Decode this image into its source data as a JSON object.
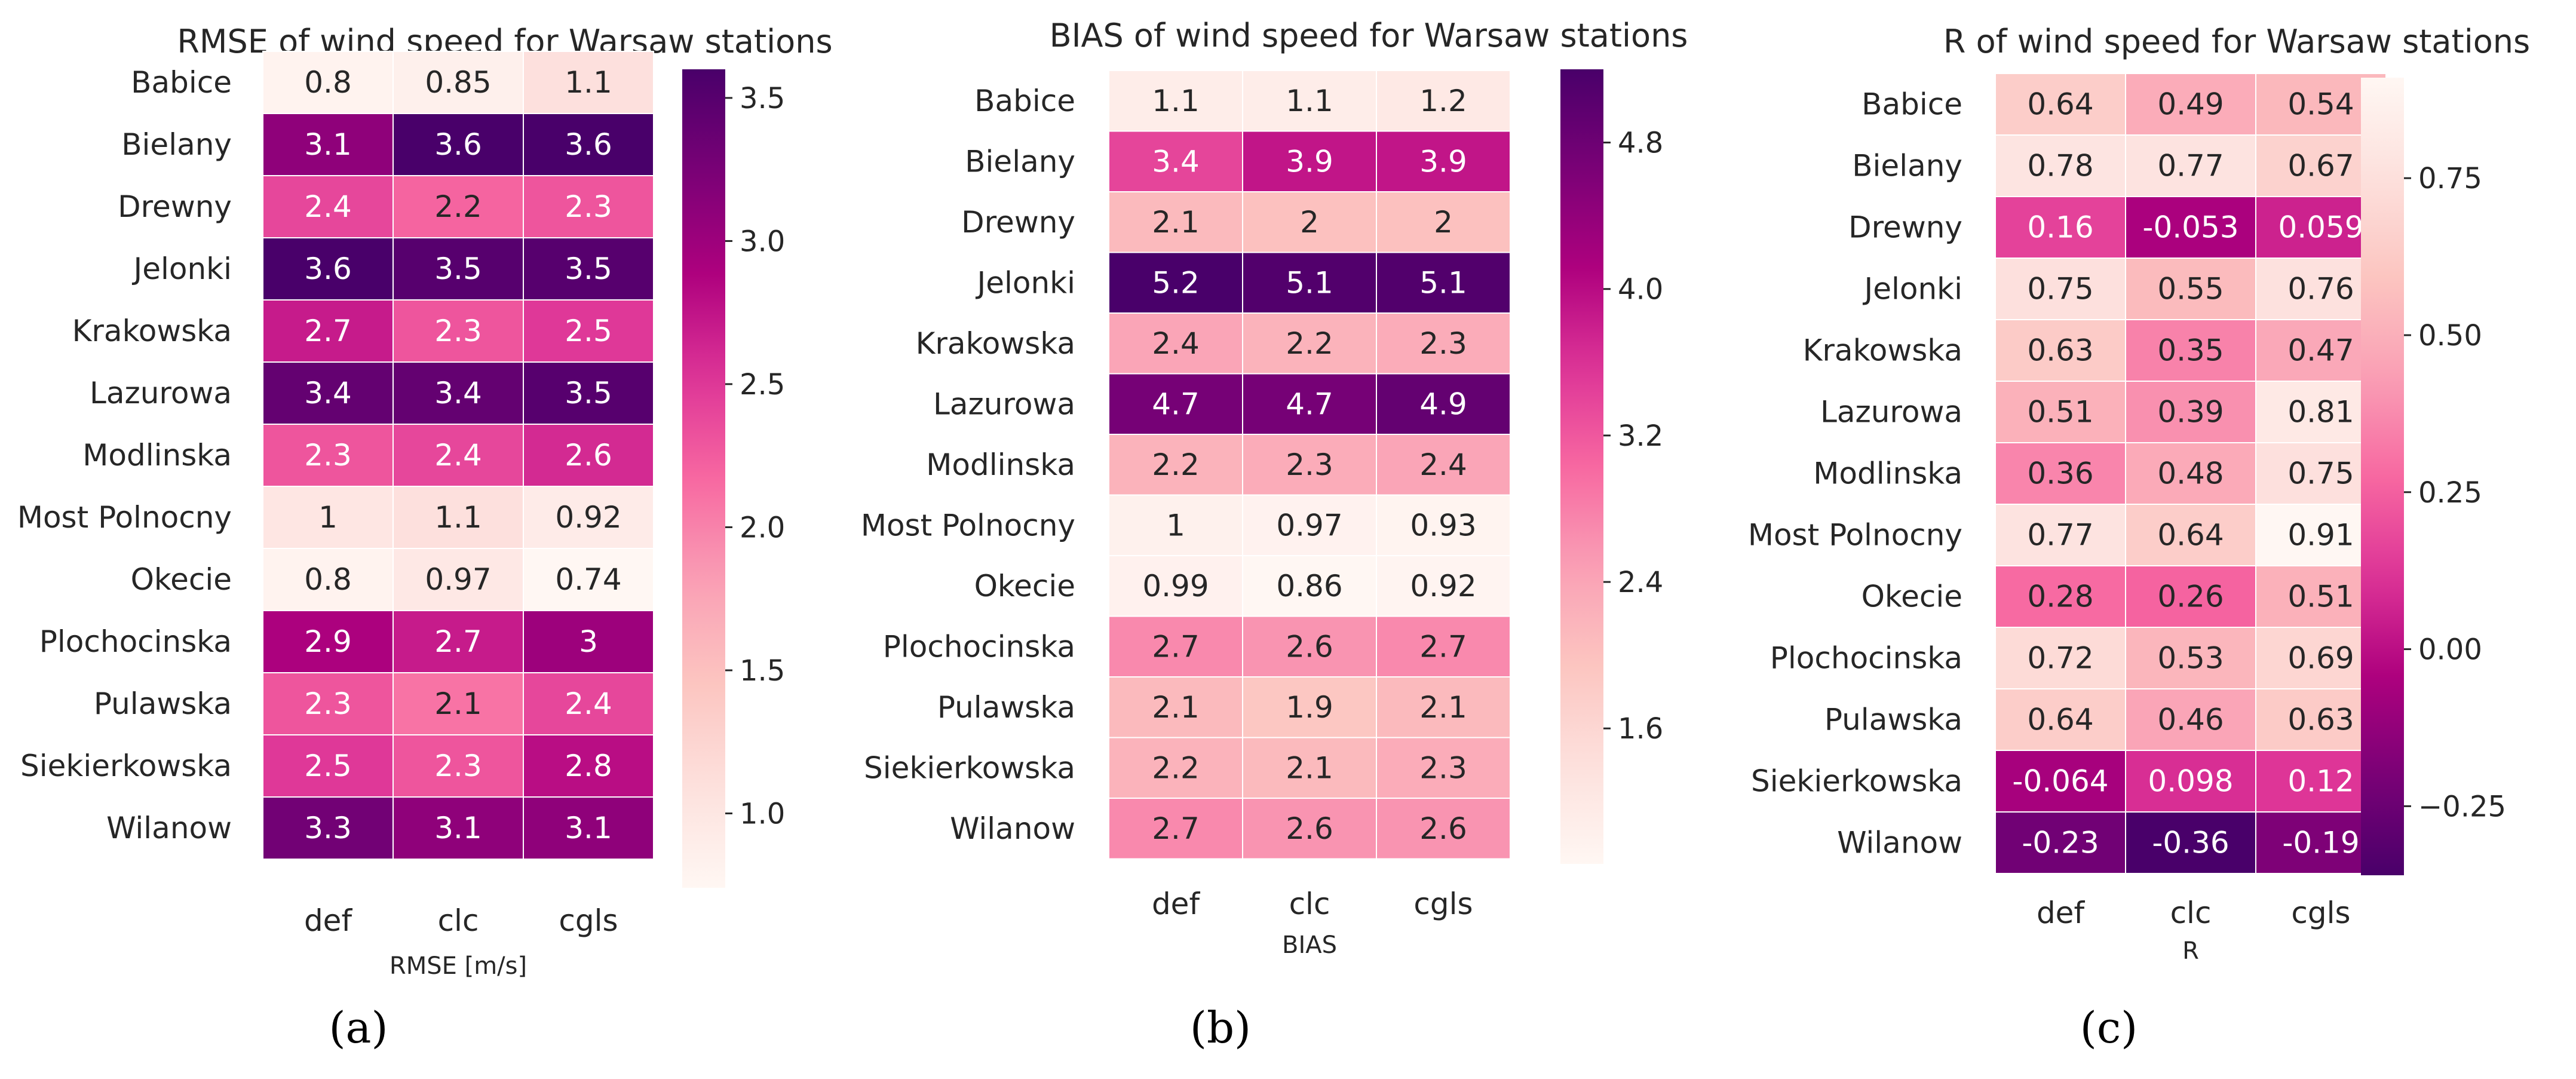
{
  "figure": {
    "panels": [
      "a",
      "b",
      "c"
    ]
  },
  "colormap": [
    "#fff7f3",
    "#fde0dd",
    "#fcc5c0",
    "#fa9fb5",
    "#f768a1",
    "#dd3497",
    "#ae017e",
    "#7a0177",
    "#49006a"
  ],
  "chart_data": [
    {
      "type": "heatmap",
      "panel_label": "(a)",
      "title": "RMSE of wind speed for Warsaw stations",
      "xlabel": "RMSE [m/s]",
      "ylabel": "",
      "columns": [
        "def",
        "clc",
        "cgls"
      ],
      "rows": [
        "Babice",
        "Bielany",
        "Drewny",
        "Jelonki",
        "Krakowska",
        "Lazurowa",
        "Modlinska",
        "Most Polnocny",
        "Okecie",
        "Plochocinska",
        "Pulawska",
        "Siekierkowska",
        "Wilanow"
      ],
      "values": [
        [
          0.8,
          0.85,
          1.1
        ],
        [
          3.1,
          3.6,
          3.6
        ],
        [
          2.4,
          2.2,
          2.3
        ],
        [
          3.6,
          3.5,
          3.5
        ],
        [
          2.7,
          2.3,
          2.5
        ],
        [
          3.4,
          3.4,
          3.5
        ],
        [
          2.3,
          2.4,
          2.6
        ],
        [
          1,
          1.1,
          0.92
        ],
        [
          0.8,
          0.97,
          0.74
        ],
        [
          2.9,
          2.7,
          3
        ],
        [
          2.3,
          2.1,
          2.4
        ],
        [
          2.5,
          2.3,
          2.8
        ],
        [
          3.3,
          3.1,
          3.1
        ]
      ],
      "value_labels": [
        [
          "0.8",
          "0.85",
          "1.1"
        ],
        [
          "3.1",
          "3.6",
          "3.6"
        ],
        [
          "2.4",
          "2.2",
          "2.3"
        ],
        [
          "3.6",
          "3.5",
          "3.5"
        ],
        [
          "2.7",
          "2.3",
          "2.5"
        ],
        [
          "3.4",
          "3.4",
          "3.5"
        ],
        [
          "2.3",
          "2.4",
          "2.6"
        ],
        [
          "1",
          "1.1",
          "0.92"
        ],
        [
          "0.8",
          "0.97",
          "0.74"
        ],
        [
          "2.9",
          "2.7",
          "3"
        ],
        [
          "2.3",
          "2.1",
          "2.4"
        ],
        [
          "2.5",
          "2.3",
          "2.8"
        ],
        [
          "3.3",
          "3.1",
          "3.1"
        ]
      ],
      "vmin": 0.74,
      "vmax": 3.6,
      "reverse_cmap": false,
      "colorbar_ticks": [
        1.0,
        1.5,
        2.0,
        2.5,
        3.0,
        3.5
      ],
      "colorbar_tick_labels": [
        "1.0",
        "1.5",
        "2.0",
        "2.5",
        "3.0",
        "3.5"
      ]
    },
    {
      "type": "heatmap",
      "panel_label": "(b)",
      "title": "BIAS of wind speed for Warsaw stations",
      "xlabel": "BIAS",
      "ylabel": "",
      "columns": [
        "def",
        "clc",
        "cgls"
      ],
      "rows": [
        "Babice",
        "Bielany",
        "Drewny",
        "Jelonki",
        "Krakowska",
        "Lazurowa",
        "Modlinska",
        "Most Polnocny",
        "Okecie",
        "Plochocinska",
        "Pulawska",
        "Siekierkowska",
        "Wilanow"
      ],
      "values": [
        [
          1.1,
          1.1,
          1.2
        ],
        [
          3.4,
          3.9,
          3.9
        ],
        [
          2.1,
          2,
          2
        ],
        [
          5.2,
          5.1,
          5.1
        ],
        [
          2.4,
          2.2,
          2.3
        ],
        [
          4.7,
          4.7,
          4.9
        ],
        [
          2.2,
          2.3,
          2.4
        ],
        [
          1,
          0.97,
          0.93
        ],
        [
          0.99,
          0.86,
          0.92
        ],
        [
          2.7,
          2.6,
          2.7
        ],
        [
          2.1,
          1.9,
          2.1
        ],
        [
          2.2,
          2.1,
          2.3
        ],
        [
          2.7,
          2.6,
          2.6
        ]
      ],
      "value_labels": [
        [
          "1.1",
          "1.1",
          "1.2"
        ],
        [
          "3.4",
          "3.9",
          "3.9"
        ],
        [
          "2.1",
          "2",
          "2"
        ],
        [
          "5.2",
          "5.1",
          "5.1"
        ],
        [
          "2.4",
          "2.2",
          "2.3"
        ],
        [
          "4.7",
          "4.7",
          "4.9"
        ],
        [
          "2.2",
          "2.3",
          "2.4"
        ],
        [
          "1",
          "0.97",
          "0.93"
        ],
        [
          "0.99",
          "0.86",
          "0.92"
        ],
        [
          "2.7",
          "2.6",
          "2.7"
        ],
        [
          "2.1",
          "1.9",
          "2.1"
        ],
        [
          "2.2",
          "2.1",
          "2.3"
        ],
        [
          "2.7",
          "2.6",
          "2.6"
        ]
      ],
      "vmin": 0.86,
      "vmax": 5.2,
      "reverse_cmap": false,
      "colorbar_ticks": [
        1.6,
        2.4,
        3.2,
        4.0,
        4.8
      ],
      "colorbar_tick_labels": [
        "1.6",
        "2.4",
        "3.2",
        "4.0",
        "4.8"
      ]
    },
    {
      "type": "heatmap",
      "panel_label": "(c)",
      "title": "R of wind speed for Warsaw stations",
      "xlabel": "R",
      "ylabel": "",
      "columns": [
        "def",
        "clc",
        "cgls"
      ],
      "rows": [
        "Babice",
        "Bielany",
        "Drewny",
        "Jelonki",
        "Krakowska",
        "Lazurowa",
        "Modlinska",
        "Most Polnocny",
        "Okecie",
        "Plochocinska",
        "Pulawska",
        "Siekierkowska",
        "Wilanow"
      ],
      "values": [
        [
          0.64,
          0.49,
          0.54
        ],
        [
          0.78,
          0.77,
          0.67
        ],
        [
          0.16,
          -0.053,
          0.059
        ],
        [
          0.75,
          0.55,
          0.76
        ],
        [
          0.63,
          0.35,
          0.47
        ],
        [
          0.51,
          0.39,
          0.81
        ],
        [
          0.36,
          0.48,
          0.75
        ],
        [
          0.77,
          0.64,
          0.91
        ],
        [
          0.28,
          0.26,
          0.51
        ],
        [
          0.72,
          0.53,
          0.69
        ],
        [
          0.64,
          0.46,
          0.63
        ],
        [
          -0.064,
          0.098,
          0.12
        ],
        [
          -0.23,
          -0.36,
          -0.19
        ]
      ],
      "value_labels": [
        [
          "0.64",
          "0.49",
          "0.54"
        ],
        [
          "0.78",
          "0.77",
          "0.67"
        ],
        [
          "0.16",
          "-0.053",
          "0.059"
        ],
        [
          "0.75",
          "0.55",
          "0.76"
        ],
        [
          "0.63",
          "0.35",
          "0.47"
        ],
        [
          "0.51",
          "0.39",
          "0.81"
        ],
        [
          "0.36",
          "0.48",
          "0.75"
        ],
        [
          "0.77",
          "0.64",
          "0.91"
        ],
        [
          "0.28",
          "0.26",
          "0.51"
        ],
        [
          "0.72",
          "0.53",
          "0.69"
        ],
        [
          "0.64",
          "0.46",
          "0.63"
        ],
        [
          "-0.064",
          "0.098",
          "0.12"
        ],
        [
          "-0.23",
          "-0.36",
          "-0.19"
        ]
      ],
      "vmin": -0.36,
      "vmax": 0.91,
      "reverse_cmap": true,
      "colorbar_ticks": [
        -0.25,
        0.0,
        0.25,
        0.5,
        0.75
      ],
      "colorbar_tick_labels": [
        "−0.25",
        "0.00",
        "0.25",
        "0.50",
        "0.75"
      ]
    }
  ]
}
